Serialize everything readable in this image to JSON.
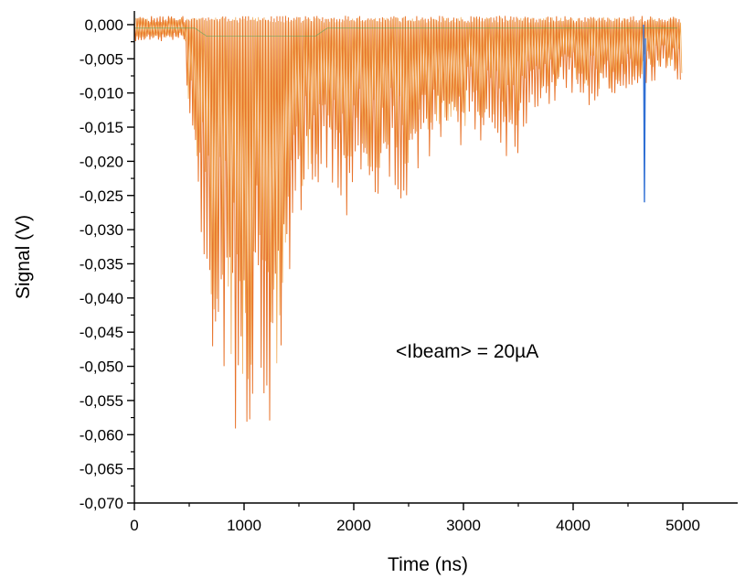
{
  "chart_data": {
    "type": "line",
    "title": "",
    "xlabel": "Time (ns)",
    "ylabel": "Signal (V)",
    "xlim": [
      0,
      5500
    ],
    "ylim": [
      -0.07,
      0.002
    ],
    "x_ticks": [
      0,
      1000,
      2000,
      3000,
      4000,
      5000
    ],
    "x_tick_labels": [
      "0",
      "1000",
      "2000",
      "3000",
      "4000",
      "5000"
    ],
    "y_ticks": [
      0.0,
      -0.005,
      -0.01,
      -0.015,
      -0.02,
      -0.025,
      -0.03,
      -0.035,
      -0.04,
      -0.045,
      -0.05,
      -0.055,
      -0.06,
      -0.065,
      -0.07
    ],
    "y_tick_labels": [
      "0,000",
      "-0,005",
      "-0,010",
      "-0,015",
      "-0,020",
      "-0,025",
      "-0,030",
      "-0,035",
      "-0,040",
      "-0,045",
      "-0,050",
      "-0,055",
      "-0,060",
      "-0,065",
      "-0,070"
    ],
    "grid": false,
    "annotation": "<Ibeam> = 20µA",
    "series": [
      {
        "color": "#e8732a",
        "envelope_x": [
          0,
          450,
          480,
          500,
          560,
          620,
          680,
          760,
          850,
          950,
          1000,
          1100,
          1200,
          1300,
          1400,
          1500,
          1600,
          1750,
          1900,
          2000,
          2200,
          2400,
          2500,
          2700,
          2900,
          3100,
          3300,
          3450,
          3600,
          3800,
          4000,
          4200,
          4400,
          4600,
          4800,
          4990
        ],
        "envelope_min": [
          -0.002,
          -0.003,
          -0.017,
          -0.018,
          -0.026,
          -0.035,
          -0.047,
          -0.052,
          -0.058,
          -0.06,
          -0.0615,
          -0.06,
          -0.0615,
          -0.06,
          -0.045,
          -0.032,
          -0.024,
          -0.022,
          -0.03,
          -0.022,
          -0.028,
          -0.025,
          -0.03,
          -0.018,
          -0.018,
          -0.017,
          -0.018,
          -0.021,
          -0.013,
          -0.012,
          -0.01,
          -0.013,
          -0.01,
          -0.009,
          -0.008,
          -0.0095
        ],
        "baseline": -0.0015,
        "pulse_period_ns": 26
      },
      {
        "color": "#2f6fd4",
        "spike_x": 4650,
        "spike_min": -0.026
      },
      {
        "color": "#4aa357",
        "note": ""
      }
    ]
  }
}
